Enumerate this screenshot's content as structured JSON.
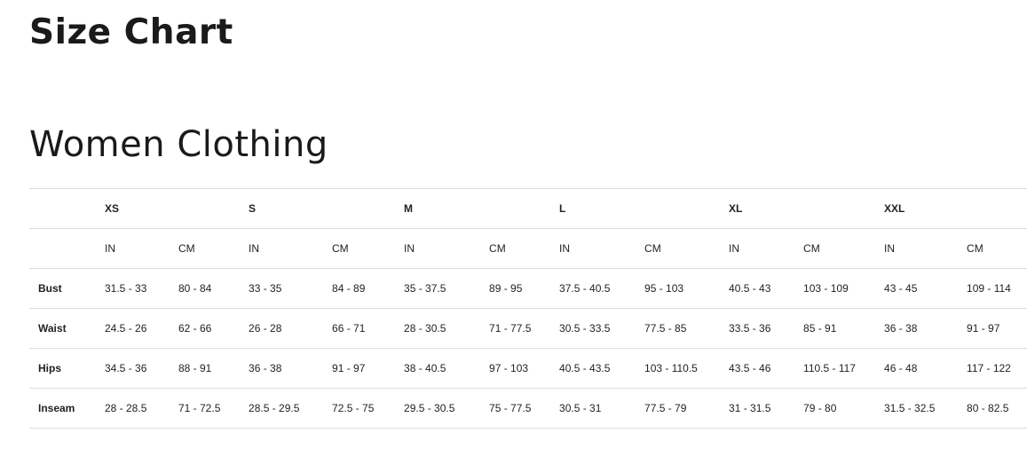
{
  "title": "Size Chart",
  "section": "Women Clothing",
  "sizes": [
    "XS",
    "S",
    "M",
    "L",
    "XL",
    "XXL"
  ],
  "units": [
    "IN",
    "CM",
    "IN",
    "CM",
    "IN",
    "CM",
    "IN",
    "CM",
    "IN",
    "CM",
    "IN",
    "CM"
  ],
  "rows": [
    {
      "label": "Bust",
      "values": [
        "31.5 - 33",
        "80 - 84",
        "33 - 35",
        "84 - 89",
        "35 - 37.5",
        "89 - 95",
        "37.5 - 40.5",
        "95 - 103",
        "40.5 - 43",
        "103 - 109",
        "43 - 45",
        "109 - 114"
      ]
    },
    {
      "label": "Waist",
      "values": [
        "24.5 - 26",
        "62 - 66",
        "26 - 28",
        "66 - 71",
        "28 - 30.5",
        "71 - 77.5",
        "30.5 - 33.5",
        "77.5 - 85",
        "33.5 - 36",
        "85 - 91",
        "36 - 38",
        "91 - 97"
      ]
    },
    {
      "label": "Hips",
      "values": [
        "34.5 - 36",
        "88 - 91",
        "36 - 38",
        "91 - 97",
        "38 - 40.5",
        "97 - 103",
        "40.5 - 43.5",
        "103 - 110.5",
        "43.5 - 46",
        "110.5 - 117",
        "46 - 48",
        "117 - 122"
      ]
    },
    {
      "label": "Inseam",
      "values": [
        "28 - 28.5",
        "71 - 72.5",
        "28.5 - 29.5",
        "72.5 - 75",
        "29.5 - 30.5",
        "75 - 77.5",
        "30.5 - 31",
        "77.5 - 79",
        "31 - 31.5",
        "79 - 80",
        "31.5 - 32.5",
        "80 - 82.5"
      ]
    }
  ]
}
